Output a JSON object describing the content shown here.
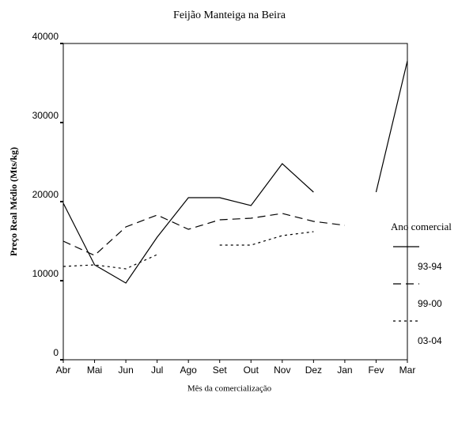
{
  "chart_data": {
    "type": "line",
    "title": "Feijão Manteiga na Beira",
    "x_label": "Mês da comercialização",
    "y_label": "Preço Real Médio (Mts/kg)",
    "legend_title": "Ano comercial",
    "categories": [
      "Abr",
      "Mai",
      "Jun",
      "Jul",
      "Ago",
      "Set",
      "Out",
      "Nov",
      "Dez",
      "Jan",
      "Fev",
      "Mar"
    ],
    "series": [
      {
        "name": "93-94",
        "color": "#000000",
        "dash": "solid",
        "values": [
          19800,
          12000,
          9700,
          15500,
          20500,
          20500,
          19500,
          24800,
          21200,
          null,
          21200,
          37800
        ]
      },
      {
        "name": "99-00",
        "color": "#000000",
        "dash": "long",
        "values": [
          15000,
          13200,
          16800,
          18300,
          16500,
          17700,
          17900,
          18500,
          17500,
          17000,
          null,
          null
        ]
      },
      {
        "name": "03-04",
        "color": "#000000",
        "dash": "dot",
        "values": [
          11800,
          12000,
          11500,
          13300,
          null,
          14500,
          14500,
          15700,
          16200,
          null,
          null,
          null
        ]
      }
    ],
    "ylim": [
      0,
      40000
    ],
    "yticks": [
      0,
      10000,
      20000,
      30000,
      40000
    ],
    "grid": false
  }
}
